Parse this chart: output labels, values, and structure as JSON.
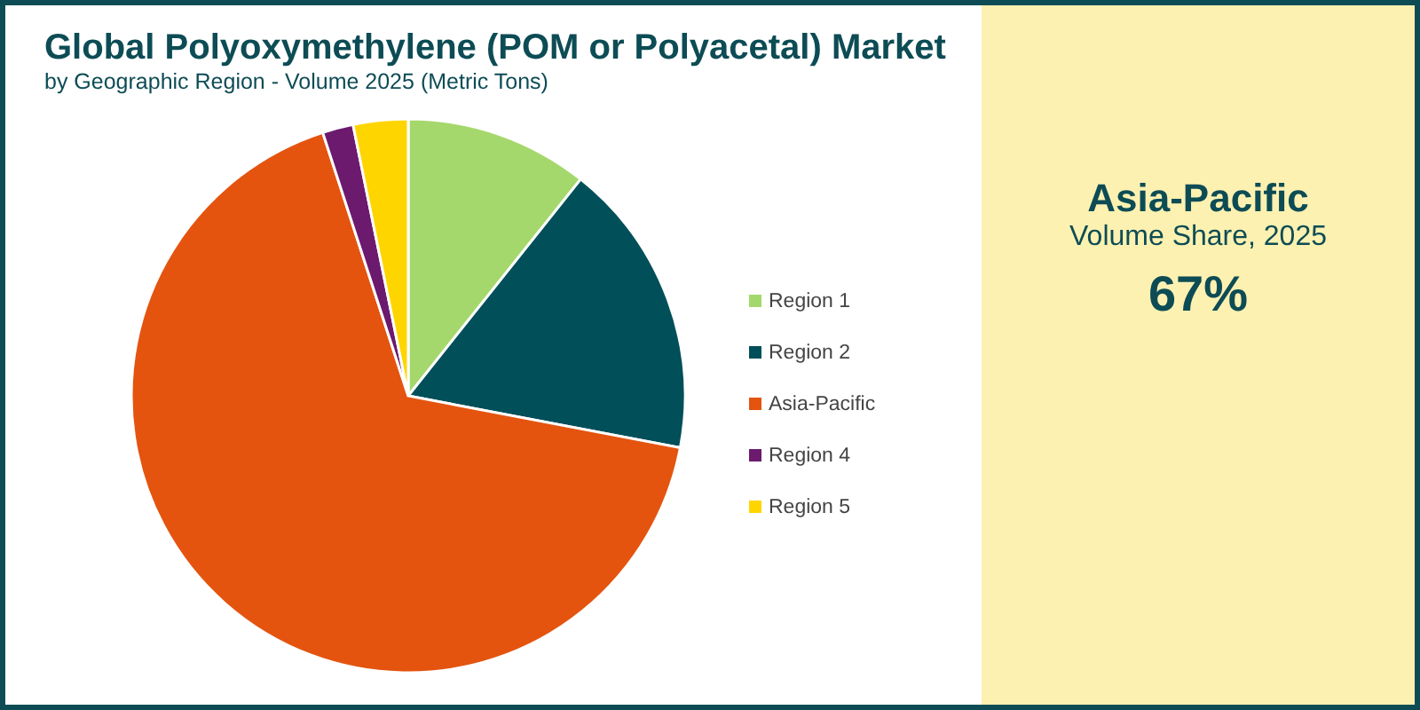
{
  "chart_data": [
    {
      "type": "pie",
      "title": "Global Polyoxymethylene (POM or Polyacetal) Market",
      "subtitle": "by Geographic Region - Volume 2025 (Metric Tons)",
      "categories": [
        "Region 1",
        "Region 2",
        "Asia-Pacific",
        "Region 4",
        "Region 5"
      ],
      "values": [
        10.7,
        17.3,
        67,
        1.8,
        3.2
      ],
      "colors": [
        "#a5d86c",
        "#014f59",
        "#e4540f",
        "#6b1a6e",
        "#ffd500"
      ],
      "legend": "right"
    },
    {
      "type": "other",
      "title": "Asia-Pacific",
      "subtitle": "Volume Share, 2025",
      "annotations": [
        "67%"
      ]
    }
  ]
}
